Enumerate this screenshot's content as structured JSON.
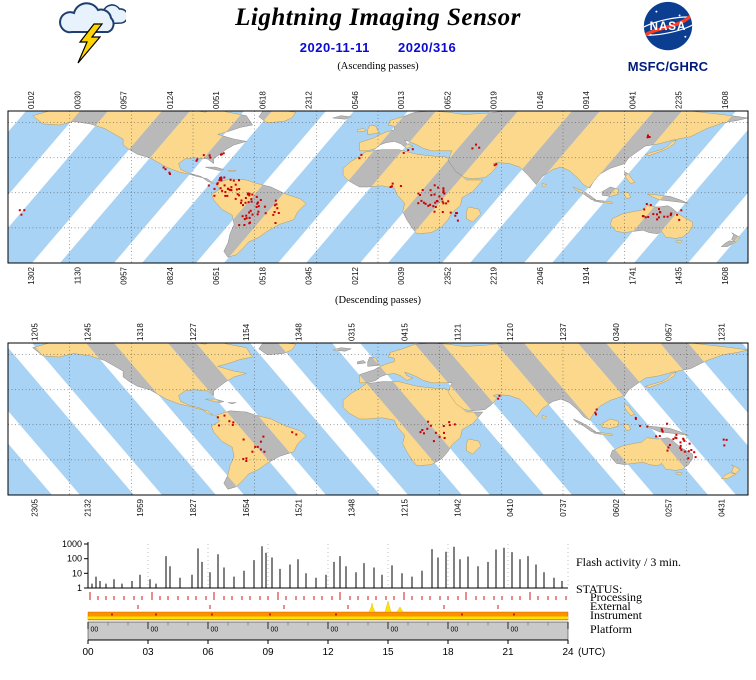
{
  "header": {
    "title": "Lightning Imaging Sensor",
    "date_iso": "2020-11-11",
    "date_doy": "2020/316",
    "org": "MSFC/GHRC",
    "nasa_text": "NASA"
  },
  "captions": {
    "ascending": "(Ascending passes)",
    "descending": "(Descending passes)"
  },
  "colors": {
    "date_blue": "#0a0ad2",
    "org_blue": "#001a7e",
    "nasa_blue": "#0b3d91",
    "nasa_red": "#fc3d21",
    "swath_ocean": "#a9d3f4",
    "swath_land": "#fbd88c",
    "gap_land": "#b9b9b9",
    "gap_ocean": "#ffffff",
    "flash_red": "#cc0000",
    "instrument_orange": "#ff9000",
    "instrument_yellow": "#ffe400",
    "platform_gray": "#c9c9c9"
  },
  "maps": {
    "ascending": {
      "top_times": [
        "0102",
        "0030",
        "0957",
        "0124",
        "0051",
        "0618",
        "2312",
        "0546",
        "0013",
        "0652",
        "0019",
        "0146",
        "0914",
        "0041",
        "2235",
        "1608"
      ],
      "bottom_times": [
        "1302",
        "1130",
        "0957",
        "0824",
        "0651",
        "0518",
        "0345",
        "0212",
        "0039",
        "2352",
        "2219",
        "2046",
        "1914",
        "1741",
        "1435",
        "1608"
      ],
      "flash_clusters": [
        [
          -73,
          4,
          26,
          16
        ],
        [
          -63,
          -3,
          8,
          12
        ],
        [
          -56,
          -14,
          30,
          20
        ],
        [
          -66,
          -24,
          6,
          9
        ],
        [
          -79,
          9,
          5,
          7
        ],
        [
          -101,
          19,
          4,
          7
        ],
        [
          -85,
          30,
          5,
          8
        ],
        [
          -76,
          36,
          3,
          6
        ],
        [
          14,
          37,
          3,
          6
        ],
        [
          9,
          5,
          4,
          7
        ],
        [
          27,
          -3,
          22,
          16
        ],
        [
          30,
          -13,
          10,
          12
        ],
        [
          36,
          -20,
          4,
          7
        ],
        [
          47,
          40,
          3,
          5
        ],
        [
          133,
          -16,
          14,
          12
        ],
        [
          143,
          -19,
          8,
          10
        ],
        [
          134,
          47,
          3,
          6
        ],
        [
          -174,
          -17,
          3,
          5
        ],
        [
          57,
          25,
          2,
          4
        ],
        [
          -8,
          31,
          2,
          4
        ]
      ]
    },
    "descending": {
      "top_times": [
        "1205",
        "1245",
        "1318",
        "1227",
        "1154",
        "1348",
        "0315",
        "0415",
        "1121",
        "1210",
        "1237",
        "0340",
        "0957",
        "1231"
      ],
      "bottom_times": [
        "2305",
        "2132",
        "1959",
        "1827",
        "1654",
        "1521",
        "1348",
        "1215",
        "1042",
        "0410",
        "0737",
        "0602",
        "0257",
        "0431"
      ],
      "flash_clusters": [
        [
          -74,
          3,
          6,
          9
        ],
        [
          -60,
          -17,
          8,
          12
        ],
        [
          -65,
          -30,
          3,
          6
        ],
        [
          21,
          -2,
          6,
          10
        ],
        [
          31,
          -10,
          5,
          8
        ],
        [
          35,
          2,
          4,
          7
        ],
        [
          140,
          -5,
          10,
          12
        ],
        [
          146,
          -17,
          12,
          12
        ],
        [
          152,
          -25,
          5,
          8
        ],
        [
          170,
          -15,
          3,
          6
        ],
        [
          60,
          24,
          2,
          4
        ],
        [
          104,
          12,
          3,
          6
        ],
        [
          128,
          2,
          4,
          7
        ],
        [
          -40,
          -6,
          2,
          4
        ]
      ]
    }
  },
  "chart_data": {
    "type": "composite",
    "flash_plot": {
      "type": "bar",
      "label": "Flash activity / 3 min.",
      "yscale": "log",
      "ylim": [
        1,
        1000
      ],
      "y_ticks": [
        "1000",
        "100",
        "10",
        "1"
      ],
      "x_unit": "hours_utc",
      "xlim": [
        0,
        24
      ],
      "spikes": [
        [
          0.2,
          2
        ],
        [
          0.4,
          6
        ],
        [
          0.6,
          3
        ],
        [
          0.9,
          2
        ],
        [
          1.3,
          4
        ],
        [
          1.7,
          2
        ],
        [
          2.2,
          3
        ],
        [
          2.6,
          8
        ],
        [
          3.1,
          4
        ],
        [
          3.4,
          2
        ],
        [
          3.9,
          150
        ],
        [
          4.1,
          30
        ],
        [
          4.6,
          5
        ],
        [
          5.2,
          8
        ],
        [
          5.5,
          500
        ],
        [
          5.7,
          60
        ],
        [
          6.1,
          12
        ],
        [
          6.5,
          200
        ],
        [
          6.8,
          25
        ],
        [
          7.3,
          6
        ],
        [
          7.8,
          15
        ],
        [
          8.3,
          80
        ],
        [
          8.7,
          700
        ],
        [
          8.9,
          250
        ],
        [
          9.2,
          120
        ],
        [
          9.6,
          20
        ],
        [
          10.1,
          40
        ],
        [
          10.5,
          90
        ],
        [
          10.9,
          10
        ],
        [
          11.4,
          5
        ],
        [
          11.9,
          8
        ],
        [
          12.3,
          60
        ],
        [
          12.6,
          150
        ],
        [
          12.9,
          30
        ],
        [
          13.4,
          12
        ],
        [
          13.8,
          50
        ],
        [
          14.3,
          25
        ],
        [
          14.7,
          8
        ],
        [
          15.2,
          35
        ],
        [
          15.7,
          10
        ],
        [
          16.2,
          6
        ],
        [
          16.7,
          15
        ],
        [
          17.2,
          450
        ],
        [
          17.5,
          120
        ],
        [
          17.9,
          300
        ],
        [
          18.3,
          650
        ],
        [
          18.6,
          90
        ],
        [
          19.0,
          140
        ],
        [
          19.5,
          30
        ],
        [
          20.0,
          60
        ],
        [
          20.4,
          420
        ],
        [
          20.8,
          550
        ],
        [
          21.2,
          280
        ],
        [
          21.6,
          90
        ],
        [
          22.0,
          150
        ],
        [
          22.4,
          40
        ],
        [
          22.8,
          12
        ],
        [
          23.3,
          5
        ],
        [
          23.7,
          3
        ]
      ]
    },
    "status": {
      "label": "STATUS:",
      "row_names": [
        "Processing",
        "External",
        "Instrument",
        "Platform"
      ],
      "processing_marks": [
        0.1,
        0.5,
        0.9,
        1.3,
        1.8,
        2.3,
        2.7,
        3.2,
        3.6,
        4.0,
        4.5,
        5.0,
        5.4,
        5.9,
        6.3,
        6.8,
        7.2,
        7.7,
        8.1,
        8.6,
        9.0,
        9.5,
        9.9,
        10.4,
        10.8,
        11.3,
        11.7,
        12.2,
        12.6,
        13.1,
        13.5,
        14.0,
        14.4,
        14.9,
        15.3,
        15.8,
        16.2,
        16.7,
        17.1,
        17.6,
        18.0,
        18.5,
        18.9,
        19.4,
        19.8,
        20.3,
        20.7,
        21.2,
        21.6,
        22.1,
        22.5,
        23.0,
        23.4,
        23.9
      ],
      "external_marks": [
        2.5,
        6.1,
        9.8,
        13.0,
        17.8,
        20.5
      ],
      "external_yellow": [
        14.2
      ],
      "instrument_bumps": [
        [
          14.2,
          7
        ],
        [
          15.0,
          11
        ],
        [
          15.6,
          5
        ]
      ],
      "instrument_marks": [
        1.2,
        3.4,
        6.2,
        9.1,
        12.4,
        18.7,
        21.3
      ],
      "platform_tick_label": "00"
    },
    "x_axis": {
      "ticks": [
        "00",
        "03",
        "06",
        "09",
        "12",
        "15",
        "18",
        "21",
        "24"
      ],
      "suffix": "(UTC)"
    }
  }
}
